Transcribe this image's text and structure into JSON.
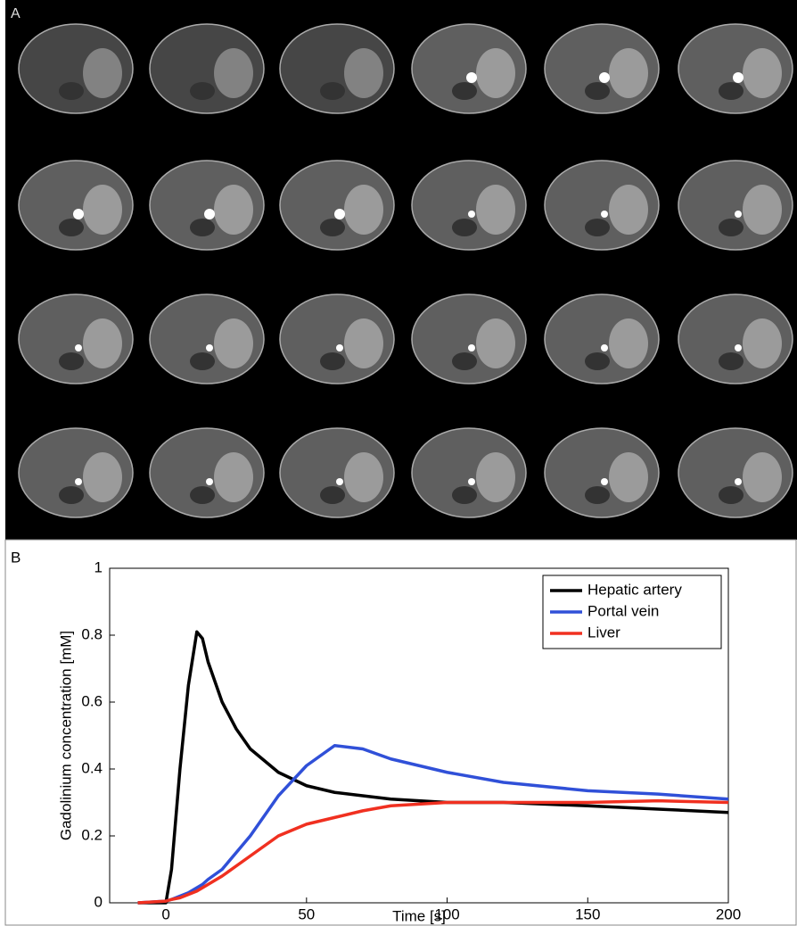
{
  "panels": {
    "a_label": "A",
    "b_label": "B"
  },
  "chart_data": {
    "type": "line",
    "xlabel": "Time [s]",
    "ylabel": "Gadolinium concentration [mM]",
    "x": [
      -10,
      0,
      2,
      5,
      8,
      11,
      13,
      15,
      20,
      25,
      30,
      40,
      50,
      60,
      70,
      80,
      90,
      100,
      120,
      150,
      175,
      200
    ],
    "series": [
      {
        "name": "Hepatic artery",
        "color": "#000000",
        "values": [
          0,
          0,
          0.1,
          0.4,
          0.65,
          0.81,
          0.79,
          0.72,
          0.6,
          0.52,
          0.46,
          0.39,
          0.35,
          0.33,
          0.32,
          0.31,
          0.305,
          0.3,
          0.3,
          0.29,
          0.28,
          0.27
        ]
      },
      {
        "name": "Portal vein",
        "color": "#3050d8",
        "values": [
          0,
          0.005,
          0.01,
          0.02,
          0.03,
          0.045,
          0.055,
          0.07,
          0.1,
          0.15,
          0.2,
          0.32,
          0.41,
          0.47,
          0.46,
          0.43,
          0.41,
          0.39,
          0.36,
          0.335,
          0.325,
          0.31
        ]
      },
      {
        "name": "Liver",
        "color": "#f03020",
        "values": [
          0,
          0.005,
          0.01,
          0.015,
          0.025,
          0.035,
          0.045,
          0.055,
          0.08,
          0.11,
          0.14,
          0.2,
          0.235,
          0.255,
          0.275,
          0.29,
          0.295,
          0.3,
          0.3,
          0.3,
          0.305,
          0.3
        ]
      }
    ],
    "xlim": [
      -20,
      200
    ],
    "xticks": [
      0,
      50,
      100,
      150,
      200
    ],
    "ylim": [
      0,
      1
    ],
    "yticks": [
      0,
      0.2,
      0.4,
      0.6,
      0.8,
      1
    ],
    "grid": false,
    "legend": "upper right"
  }
}
